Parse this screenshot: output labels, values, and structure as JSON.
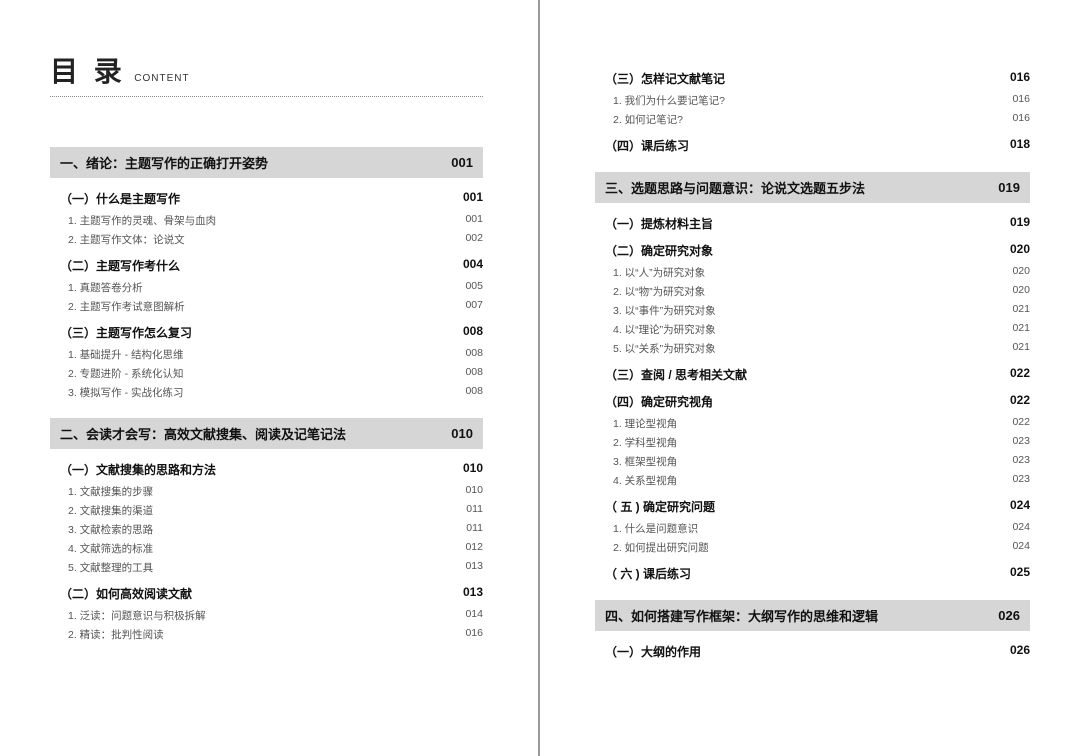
{
  "header": {
    "main": "目 录",
    "sub": "CONTENT"
  },
  "colors": {
    "chapterBg": "#d6d6d6",
    "textPrimary": "#111111",
    "textSecondary": "#555555",
    "divider": "#999999"
  },
  "left": [
    {
      "type": "chapter",
      "title": "一、绪论：主题写作的正确打开姿势",
      "page": "001"
    },
    {
      "type": "section",
      "title": "（一）什么是主题写作",
      "page": "001"
    },
    {
      "type": "item",
      "title": "1. 主题写作的灵魂、骨架与血肉",
      "page": "001"
    },
    {
      "type": "item",
      "title": "2. 主题写作文体：论说文",
      "page": "002"
    },
    {
      "type": "section",
      "title": "（二）主题写作考什么",
      "page": "004"
    },
    {
      "type": "item",
      "title": "1. 真题答卷分析",
      "page": "005"
    },
    {
      "type": "item",
      "title": "2. 主题写作考试意图解析",
      "page": "007"
    },
    {
      "type": "section",
      "title": "（三）主题写作怎么复习",
      "page": "008"
    },
    {
      "type": "item",
      "title": "1. 基础提升 - 结构化思维",
      "page": "008"
    },
    {
      "type": "item",
      "title": "2. 专题进阶 - 系统化认知",
      "page": "008"
    },
    {
      "type": "item",
      "title": "3. 模拟写作 - 实战化练习",
      "page": "008"
    },
    {
      "type": "chapter",
      "title": "二、会读才会写：高效文献搜集、阅读及记笔记法",
      "page": "010"
    },
    {
      "type": "section",
      "title": "（一）文献搜集的思路和方法",
      "page": "010"
    },
    {
      "type": "item",
      "title": "1. 文献搜集的步骤",
      "page": "010"
    },
    {
      "type": "item",
      "title": "2. 文献搜集的渠道",
      "page": "011"
    },
    {
      "type": "item",
      "title": "3. 文献检索的思路",
      "page": "011"
    },
    {
      "type": "item",
      "title": "4. 文献筛选的标准",
      "page": "012"
    },
    {
      "type": "item",
      "title": "5. 文献整理的工具",
      "page": "013"
    },
    {
      "type": "section",
      "title": "（二）如何高效阅读文献",
      "page": "013"
    },
    {
      "type": "item",
      "title": "1. 泛读：问题意识与积极拆解",
      "page": "014"
    },
    {
      "type": "item",
      "title": "2. 精读：批判性阅读",
      "page": "016"
    }
  ],
  "right": [
    {
      "type": "section",
      "title": "（三）怎样记文献笔记",
      "page": "016"
    },
    {
      "type": "item",
      "title": "1. 我们为什么要记笔记?",
      "page": "016"
    },
    {
      "type": "item",
      "title": "2. 如何记笔记?",
      "page": "016"
    },
    {
      "type": "section",
      "title": "（四）课后练习",
      "page": "018"
    },
    {
      "type": "chapter",
      "title": "三、选题思路与问题意识：论说文选题五步法",
      "page": "019"
    },
    {
      "type": "section",
      "title": "（一）提炼材料主旨",
      "page": "019"
    },
    {
      "type": "section",
      "title": "（二）确定研究对象",
      "page": "020"
    },
    {
      "type": "item",
      "title": "1. 以“人”为研究对象",
      "page": "020"
    },
    {
      "type": "item",
      "title": "2. 以“物”为研究对象",
      "page": "020"
    },
    {
      "type": "item",
      "title": "3. 以“事件”为研究对象",
      "page": "021"
    },
    {
      "type": "item",
      "title": "4. 以“理论”为研究对象",
      "page": "021"
    },
    {
      "type": "item",
      "title": "5. 以“关系”为研究对象",
      "page": "021"
    },
    {
      "type": "section",
      "title": "（三）查阅 / 思考相关文献",
      "page": "022"
    },
    {
      "type": "section",
      "title": "（四）确定研究视角",
      "page": "022"
    },
    {
      "type": "item",
      "title": "1. 理论型视角",
      "page": "022"
    },
    {
      "type": "item",
      "title": "2. 学科型视角",
      "page": "023"
    },
    {
      "type": "item",
      "title": "3. 框架型视角",
      "page": "023"
    },
    {
      "type": "item",
      "title": "4. 关系型视角",
      "page": "023"
    },
    {
      "type": "section",
      "title": "（ 五 ) 确定研究问题",
      "page": "024"
    },
    {
      "type": "item",
      "title": "1. 什么是问题意识",
      "page": "024"
    },
    {
      "type": "item",
      "title": "2. 如何提出研究问题",
      "page": "024"
    },
    {
      "type": "section",
      "title": "（ 六 ) 课后练习",
      "page": "025"
    },
    {
      "type": "chapter",
      "title": "四、如何搭建写作框架：大纲写作的思维和逻辑",
      "page": "026"
    },
    {
      "type": "section",
      "title": "（一）大纲的作用",
      "page": "026"
    }
  ]
}
